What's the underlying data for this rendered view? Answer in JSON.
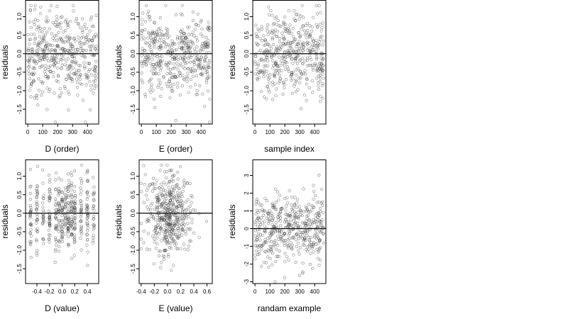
{
  "chart_data": [
    {
      "type": "scatter",
      "xlabel": "D (order)",
      "ylabel": "residuals",
      "xlim": [
        -15,
        475
      ],
      "ylim": [
        -1.9,
        1.45
      ],
      "xticks": [
        0,
        100,
        200,
        300,
        400
      ],
      "yticks": [
        -1.5,
        -1.0,
        -0.5,
        0.0,
        0.5,
        1.0
      ],
      "reference_line_y": 0,
      "n_points": 460,
      "x_range": [
        0,
        460
      ],
      "y_range": [
        -1.85,
        1.3
      ]
    },
    {
      "type": "scatter",
      "xlabel": "E (order)",
      "ylabel": "residuals",
      "xlim": [
        -15,
        475
      ],
      "ylim": [
        -1.9,
        1.45
      ],
      "xticks": [
        0,
        100,
        200,
        300,
        400
      ],
      "yticks": [
        -1.5,
        -1.0,
        -0.5,
        0.0,
        0.5,
        1.0
      ],
      "reference_line_y": 0,
      "n_points": 460,
      "x_range": [
        0,
        460
      ],
      "y_range": [
        -1.85,
        1.3
      ]
    },
    {
      "type": "scatter",
      "xlabel": "sample index",
      "ylabel": "residuals",
      "xlim": [
        -15,
        475
      ],
      "ylim": [
        -1.9,
        1.45
      ],
      "xticks": [
        0,
        100,
        200,
        300,
        400
      ],
      "yticks": [
        -1.5,
        -1.0,
        -0.5,
        0.0,
        0.5,
        1.0
      ],
      "reference_line_y": 0,
      "n_points": 460,
      "x_range": [
        0,
        460
      ],
      "y_range": [
        -1.85,
        1.3
      ]
    },
    {
      "type": "scatter",
      "xlabel": "D (value)",
      "ylabel": "residuals",
      "xlim": [
        -0.58,
        0.58
      ],
      "ylim": [
        -1.9,
        1.45
      ],
      "xticks": [
        -0.4,
        -0.2,
        0.0,
        0.2,
        0.4
      ],
      "yticks": [
        -1.5,
        -1.0,
        -0.5,
        0.0,
        0.5,
        1.0
      ],
      "reference_line_y": 0,
      "n_points": 460,
      "x_range": [
        -0.55,
        0.55
      ],
      "y_range": [
        -1.85,
        1.3
      ]
    },
    {
      "type": "scatter",
      "xlabel": "E (value)",
      "ylabel": "residuals",
      "xlim": [
        -0.43,
        0.68
      ],
      "ylim": [
        -1.9,
        1.45
      ],
      "xticks": [
        -0.4,
        -0.2,
        0.0,
        0.2,
        0.4,
        0.6
      ],
      "yticks": [
        -1.5,
        -1.0,
        -0.5,
        0.0,
        0.5,
        1.0
      ],
      "reference_line_y": 0,
      "n_points": 460,
      "x_range": [
        -0.4,
        0.65
      ],
      "y_range": [
        -1.85,
        1.3
      ]
    },
    {
      "type": "scatter",
      "xlabel": "randam example",
      "ylabel": "residuals",
      "xlim": [
        -15,
        475
      ],
      "ylim": [
        -3.1,
        3.9
      ],
      "xticks": [
        0,
        100,
        200,
        300,
        400
      ],
      "yticks": [
        -3,
        -2,
        -1,
        0,
        1,
        2,
        3
      ],
      "reference_line_y": 0,
      "n_points": 460,
      "x_range": [
        0,
        460
      ],
      "y_range": [
        -3,
        3.6
      ]
    }
  ]
}
